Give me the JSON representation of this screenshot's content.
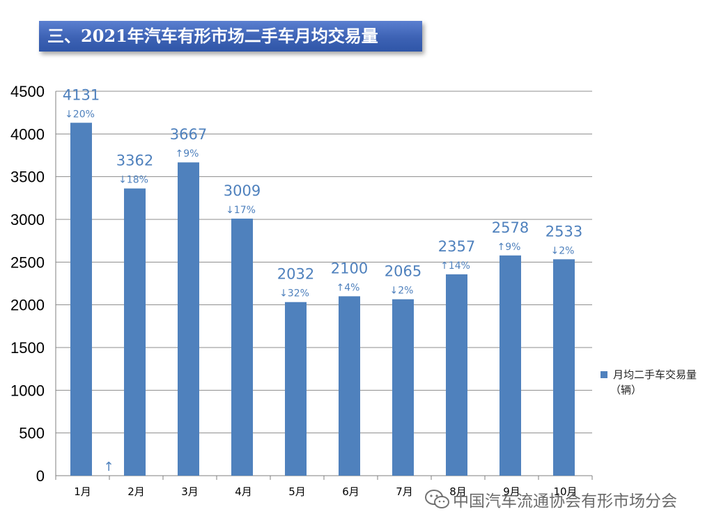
{
  "title": "三、2021年汽车有形市场二手车月均交易量",
  "legend": {
    "label": "月均二手车交易量",
    "unit": "（辆）",
    "color": "#4f81bd"
  },
  "watermark": {
    "text": "中国汽车流通协会有形市场分会",
    "icon": "wechat-icon"
  },
  "colors": {
    "bar": "#4f81bd",
    "label": "#4f81bd",
    "title_bg": "#3d62b4"
  },
  "chart_data": {
    "type": "bar",
    "categories": [
      "1月",
      "2月",
      "3月",
      "4月",
      "5月",
      "6月",
      "7月",
      "8月",
      "9月",
      "10月"
    ],
    "series": [
      {
        "name": "月均二手车交易量（辆）",
        "values": [
          4131,
          3362,
          3667,
          3009,
          2032,
          2100,
          2065,
          2357,
          2578,
          2533
        ]
      }
    ],
    "change_labels": [
      "↓20%",
      "↓18%",
      "↑9%",
      "↓17%",
      "↓32%",
      "↑4%",
      "↓2%",
      "↑14%",
      "↑9%",
      "↓2%"
    ],
    "stray_marks": [
      "↑"
    ],
    "ylim": [
      0,
      4500
    ],
    "yticks": [
      0,
      500,
      1000,
      1500,
      2000,
      2500,
      3000,
      3500,
      4000,
      4500
    ],
    "grid": true,
    "legend_position": "right",
    "xlabel": "",
    "ylabel": ""
  }
}
